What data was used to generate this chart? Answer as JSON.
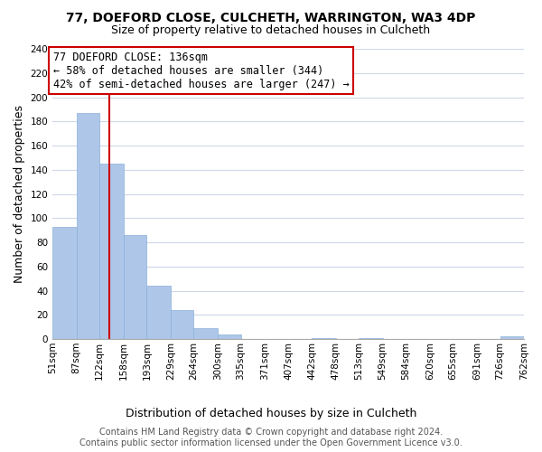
{
  "title": "77, DOEFORD CLOSE, CULCHETH, WARRINGTON, WA3 4DP",
  "subtitle": "Size of property relative to detached houses in Culcheth",
  "xlabel": "Distribution of detached houses by size in Culcheth",
  "ylabel": "Number of detached properties",
  "bar_edges": [
    51,
    87,
    122,
    158,
    193,
    229,
    264,
    300,
    335,
    371,
    407,
    442,
    478,
    513,
    549,
    584,
    620,
    655,
    691,
    726,
    762
  ],
  "bar_heights": [
    93,
    187,
    145,
    86,
    44,
    24,
    9,
    4,
    0,
    0,
    0,
    1,
    0,
    1,
    0,
    0,
    0,
    0,
    0,
    2
  ],
  "bar_color": "#aec6e8",
  "bar_edge_color": "#aec6e8",
  "property_line_x": 136,
  "property_line_color": "#cc0000",
  "annotation_title": "77 DOEFORD CLOSE: 136sqm",
  "annotation_line1": "← 58% of detached houses are smaller (344)",
  "annotation_line2": "42% of semi-detached houses are larger (247) →",
  "annotation_box_color": "#ffffff",
  "annotation_box_edge_color": "#cc0000",
  "ylim": [
    0,
    240
  ],
  "yticks": [
    0,
    20,
    40,
    60,
    80,
    100,
    120,
    140,
    160,
    180,
    200,
    220,
    240
  ],
  "tick_labels": [
    "51sqm",
    "87sqm",
    "122sqm",
    "158sqm",
    "193sqm",
    "229sqm",
    "264sqm",
    "300sqm",
    "335sqm",
    "371sqm",
    "407sqm",
    "442sqm",
    "478sqm",
    "513sqm",
    "549sqm",
    "584sqm",
    "620sqm",
    "655sqm",
    "691sqm",
    "726sqm",
    "762sqm"
  ],
  "footer_line1": "Contains HM Land Registry data © Crown copyright and database right 2024.",
  "footer_line2": "Contains public sector information licensed under the Open Government Licence v3.0.",
  "background_color": "#ffffff",
  "grid_color": "#cdd8e8",
  "title_fontsize": 10,
  "subtitle_fontsize": 9,
  "axis_label_fontsize": 9,
  "tick_fontsize": 7.5,
  "annotation_fontsize": 8.5,
  "footer_fontsize": 7,
  "xlim_left": 51,
  "xlim_right": 762
}
